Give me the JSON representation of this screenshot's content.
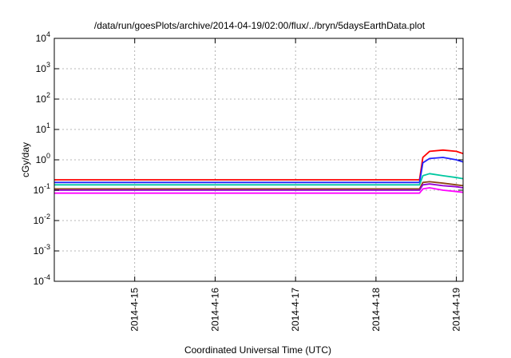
{
  "chart_data": {
    "type": "line",
    "title": "/data/run/goesPlots/archive/2014-04-19/02:00/flux/../bryn/5daysEarthData.plot",
    "xlabel": "Coordinated Universal Time (UTC)",
    "ylabel": "cGy/day",
    "y_scale": "log",
    "ylim": [
      0.0001,
      10000
    ],
    "y_ticks": [
      {
        "value": 0.0001,
        "base": "10",
        "exp": "-4"
      },
      {
        "value": 0.001,
        "base": "10",
        "exp": "-3"
      },
      {
        "value": 0.01,
        "base": "10",
        "exp": "-2"
      },
      {
        "value": 0.1,
        "base": "10",
        "exp": "-1"
      },
      {
        "value": 1,
        "base": "10",
        "exp": "0"
      },
      {
        "value": 10,
        "base": "10",
        "exp": "1"
      },
      {
        "value": 100,
        "base": "10",
        "exp": "2"
      },
      {
        "value": 1000,
        "base": "10",
        "exp": "3"
      },
      {
        "value": 10000,
        "base": "10",
        "exp": "4"
      }
    ],
    "xlim": [
      "2014-04-14T00:00",
      "2014-04-19T02:00"
    ],
    "x_ticks": [
      {
        "value": "2014-04-15T00:00",
        "label": "2014-4-15"
      },
      {
        "value": "2014-04-16T00:00",
        "label": "2014-4-16"
      },
      {
        "value": "2014-04-17T00:00",
        "label": "2014-4-17"
      },
      {
        "value": "2014-04-18T00:00",
        "label": "2014-4-18"
      },
      {
        "value": "2014-04-19T00:00",
        "label": "2014-4-19"
      }
    ],
    "grid": true,
    "legend": "none",
    "series": [
      {
        "color": "#ff0000",
        "x": [
          "2014-04-14T00:00",
          "2014-04-15T00:00",
          "2014-04-16T00:00",
          "2014-04-17T00:00",
          "2014-04-18T00:00",
          "2014-04-18T13:00",
          "2014-04-18T14:00",
          "2014-04-18T16:00",
          "2014-04-18T20:00",
          "2014-04-19T00:00",
          "2014-04-19T02:00"
        ],
        "y": [
          0.22,
          0.22,
          0.22,
          0.22,
          0.22,
          0.22,
          1.2,
          1.9,
          2.1,
          1.9,
          1.6
        ]
      },
      {
        "color": "#2222ff",
        "x": [
          "2014-04-14T00:00",
          "2014-04-15T00:00",
          "2014-04-16T00:00",
          "2014-04-17T00:00",
          "2014-04-18T00:00",
          "2014-04-18T13:00",
          "2014-04-18T14:00",
          "2014-04-18T16:00",
          "2014-04-18T20:00",
          "2014-04-19T00:00",
          "2014-04-19T02:00"
        ],
        "y": [
          0.18,
          0.18,
          0.18,
          0.18,
          0.18,
          0.18,
          0.8,
          1.1,
          1.2,
          1.0,
          0.85
        ]
      },
      {
        "color": "#00c8a0",
        "x": [
          "2014-04-14T00:00",
          "2014-04-15T00:00",
          "2014-04-16T00:00",
          "2014-04-17T00:00",
          "2014-04-18T00:00",
          "2014-04-18T13:00",
          "2014-04-18T14:00",
          "2014-04-18T16:00",
          "2014-04-18T20:00",
          "2014-04-19T00:00",
          "2014-04-19T02:00"
        ],
        "y": [
          0.15,
          0.15,
          0.15,
          0.15,
          0.15,
          0.15,
          0.3,
          0.35,
          0.3,
          0.26,
          0.24
        ]
      },
      {
        "color": "#8b4513",
        "x": [
          "2014-04-14T00:00",
          "2014-04-15T00:00",
          "2014-04-16T00:00",
          "2014-04-17T00:00",
          "2014-04-18T00:00",
          "2014-04-18T13:00",
          "2014-04-18T14:00",
          "2014-04-18T16:00",
          "2014-04-18T20:00",
          "2014-04-19T00:00",
          "2014-04-19T02:00"
        ],
        "y": [
          0.11,
          0.11,
          0.11,
          0.11,
          0.11,
          0.11,
          0.18,
          0.19,
          0.17,
          0.15,
          0.14
        ]
      },
      {
        "color": "#9400d3",
        "x": [
          "2014-04-14T00:00",
          "2014-04-15T00:00",
          "2014-04-16T00:00",
          "2014-04-17T00:00",
          "2014-04-18T00:00",
          "2014-04-18T13:00",
          "2014-04-18T14:00",
          "2014-04-18T16:00",
          "2014-04-18T20:00",
          "2014-04-19T00:00",
          "2014-04-19T02:00"
        ],
        "y": [
          0.1,
          0.1,
          0.1,
          0.1,
          0.1,
          0.1,
          0.15,
          0.16,
          0.14,
          0.13,
          0.12
        ]
      },
      {
        "color": "#ff00ff",
        "x": [
          "2014-04-14T00:00",
          "2014-04-15T00:00",
          "2014-04-16T00:00",
          "2014-04-17T00:00",
          "2014-04-18T00:00",
          "2014-04-18T13:00",
          "2014-04-18T14:00",
          "2014-04-18T16:00",
          "2014-04-18T20:00",
          "2014-04-19T00:00",
          "2014-04-19T02:00"
        ],
        "y": [
          0.08,
          0.08,
          0.08,
          0.08,
          0.08,
          0.08,
          0.11,
          0.12,
          0.1,
          0.09,
          0.085
        ]
      }
    ]
  }
}
